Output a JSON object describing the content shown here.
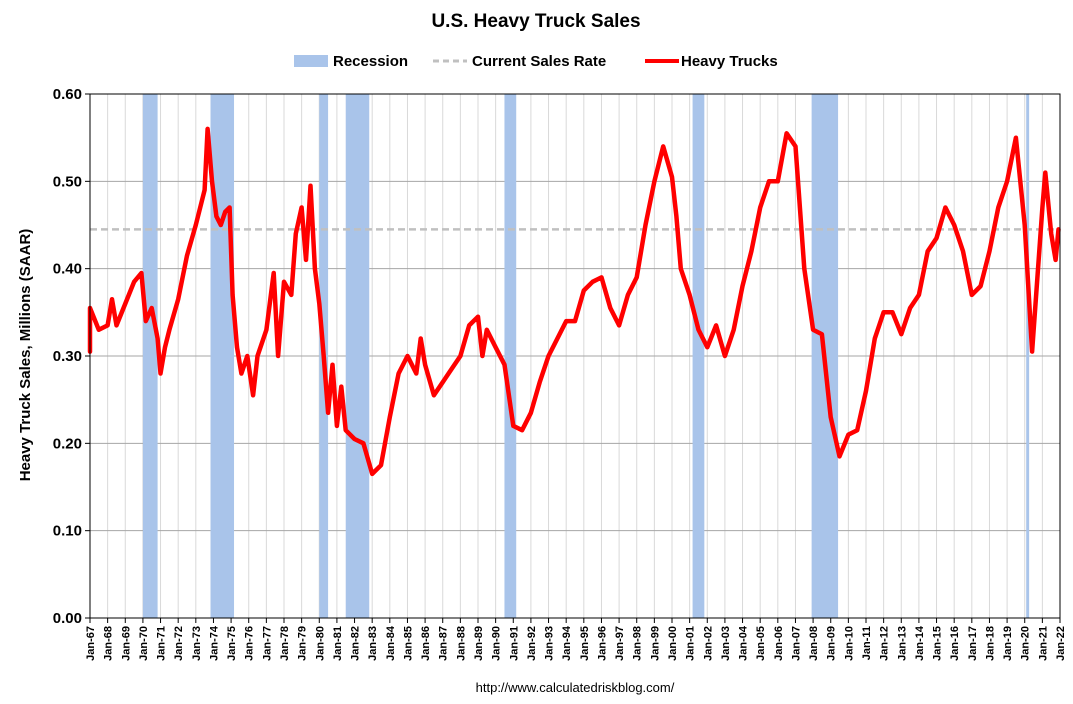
{
  "chart_data": {
    "type": "line",
    "title": "U.S. Heavy Truck Sales",
    "ylabel": "Heavy Truck Sales, Millions (SAAR)",
    "xlabel": "",
    "ylim": [
      0,
      0.6
    ],
    "yticks": [
      "0.00",
      "0.10",
      "0.20",
      "0.30",
      "0.40",
      "0.50",
      "0.60"
    ],
    "x_start": "Jan-67",
    "x_end": "Jan-22",
    "xtick_labels": [
      "Jan-67",
      "Jan-68",
      "Jan-69",
      "Jan-70",
      "Jan-71",
      "Jan-72",
      "Jan-73",
      "Jan-74",
      "Jan-75",
      "Jan-76",
      "Jan-77",
      "Jan-78",
      "Jan-79",
      "Jan-80",
      "Jan-81",
      "Jan-82",
      "Jan-83",
      "Jan-84",
      "Jan-85",
      "Jan-86",
      "Jan-87",
      "Jan-88",
      "Jan-89",
      "Jan-90",
      "Jan-91",
      "Jan-92",
      "Jan-93",
      "Jan-94",
      "Jan-95",
      "Jan-96",
      "Jan-97",
      "Jan-98",
      "Jan-99",
      "Jan-00",
      "Jan-01",
      "Jan-02",
      "Jan-03",
      "Jan-04",
      "Jan-05",
      "Jan-06",
      "Jan-07",
      "Jan-08",
      "Jan-09",
      "Jan-10",
      "Jan-11",
      "Jan-12",
      "Jan-13",
      "Jan-14",
      "Jan-15",
      "Jan-16",
      "Jan-17",
      "Jan-18",
      "Jan-19",
      "Jan-20",
      "Jan-21",
      "Jan-22"
    ],
    "grid": true,
    "legend_position": "top-center",
    "legend": [
      {
        "label": "Recession",
        "kind": "band",
        "color": "#a9c4ea"
      },
      {
        "label": "Current Sales Rate",
        "kind": "dashed",
        "color": "#c0c0c0"
      },
      {
        "label": "Heavy Trucks",
        "kind": "line",
        "color": "#ff0000"
      }
    ],
    "current_sales_rate": 0.445,
    "recessions": [
      [
        "Jan-70",
        "Nov-70"
      ],
      [
        "Nov-73",
        "Mar-75"
      ],
      [
        "Jan-80",
        "Jul-80"
      ],
      [
        "Jul-81",
        "Nov-82"
      ],
      [
        "Jul-90",
        "Mar-91"
      ],
      [
        "Mar-01",
        "Nov-01"
      ],
      [
        "Dec-07",
        "Jun-09"
      ],
      [
        "Feb-20",
        "Apr-20"
      ]
    ],
    "series": [
      {
        "name": "Heavy Trucks",
        "color": "#ff0000",
        "points": [
          [
            "Jan-67",
            0.305
          ],
          [
            "Jan-67",
            0.355
          ],
          [
            "Jul-67",
            0.33
          ],
          [
            "Jan-68",
            0.335
          ],
          [
            "Apr-68",
            0.365
          ],
          [
            "Jul-68",
            0.335
          ],
          [
            "Jan-69",
            0.36
          ],
          [
            "Jul-69",
            0.385
          ],
          [
            "Dec-69",
            0.395
          ],
          [
            "Mar-70",
            0.34
          ],
          [
            "Jul-70",
            0.355
          ],
          [
            "Nov-70",
            0.32
          ],
          [
            "Jan-71",
            0.28
          ],
          [
            "Apr-71",
            0.31
          ],
          [
            "Jul-71",
            0.33
          ],
          [
            "Jan-72",
            0.365
          ],
          [
            "Jul-72",
            0.415
          ],
          [
            "Jan-73",
            0.45
          ],
          [
            "Jul-73",
            0.49
          ],
          [
            "Sep-73",
            0.56
          ],
          [
            "Dec-73",
            0.5
          ],
          [
            "Mar-74",
            0.46
          ],
          [
            "Jun-74",
            0.45
          ],
          [
            "Sep-74",
            0.465
          ],
          [
            "Dec-74",
            0.47
          ],
          [
            "Feb-75",
            0.37
          ],
          [
            "May-75",
            0.31
          ],
          [
            "Aug-75",
            0.28
          ],
          [
            "Dec-75",
            0.3
          ],
          [
            "Apr-76",
            0.255
          ],
          [
            "Jul-76",
            0.3
          ],
          [
            "Jan-77",
            0.33
          ],
          [
            "Jun-77",
            0.395
          ],
          [
            "Sep-77",
            0.3
          ],
          [
            "Jan-78",
            0.385
          ],
          [
            "Jun-78",
            0.37
          ],
          [
            "Sep-78",
            0.44
          ],
          [
            "Jan-79",
            0.47
          ],
          [
            "Apr-79",
            0.41
          ],
          [
            "Jul-79",
            0.495
          ],
          [
            "Oct-79",
            0.4
          ],
          [
            "Jan-80",
            0.36
          ],
          [
            "Apr-80",
            0.3
          ],
          [
            "Jul-80",
            0.235
          ],
          [
            "Oct-80",
            0.29
          ],
          [
            "Jan-81",
            0.22
          ],
          [
            "Apr-81",
            0.265
          ],
          [
            "Jul-81",
            0.215
          ],
          [
            "Jan-82",
            0.205
          ],
          [
            "Jul-82",
            0.2
          ],
          [
            "Jan-83",
            0.165
          ],
          [
            "Jul-83",
            0.175
          ],
          [
            "Jan-84",
            0.23
          ],
          [
            "Jul-84",
            0.28
          ],
          [
            "Jan-85",
            0.3
          ],
          [
            "Jul-85",
            0.28
          ],
          [
            "Oct-85",
            0.32
          ],
          [
            "Jan-86",
            0.29
          ],
          [
            "Jul-86",
            0.255
          ],
          [
            "Jan-87",
            0.27
          ],
          [
            "Jul-87",
            0.285
          ],
          [
            "Jan-88",
            0.3
          ],
          [
            "Jul-88",
            0.335
          ],
          [
            "Jan-89",
            0.345
          ],
          [
            "Apr-89",
            0.3
          ],
          [
            "Jul-89",
            0.33
          ],
          [
            "Jan-90",
            0.31
          ],
          [
            "Jul-90",
            0.29
          ],
          [
            "Jan-91",
            0.22
          ],
          [
            "Jul-91",
            0.215
          ],
          [
            "Jan-92",
            0.235
          ],
          [
            "Jul-92",
            0.27
          ],
          [
            "Jan-93",
            0.3
          ],
          [
            "Jul-93",
            0.32
          ],
          [
            "Jan-94",
            0.34
          ],
          [
            "Jul-94",
            0.34
          ],
          [
            "Jan-95",
            0.375
          ],
          [
            "Jul-95",
            0.385
          ],
          [
            "Jan-96",
            0.39
          ],
          [
            "Jul-96",
            0.355
          ],
          [
            "Jan-97",
            0.335
          ],
          [
            "Jul-97",
            0.37
          ],
          [
            "Jan-98",
            0.39
          ],
          [
            "Jul-98",
            0.45
          ],
          [
            "Jan-99",
            0.5
          ],
          [
            "Jul-99",
            0.54
          ],
          [
            "Jan-00",
            0.505
          ],
          [
            "Apr-00",
            0.46
          ],
          [
            "Jul-00",
            0.4
          ],
          [
            "Jan-01",
            0.37
          ],
          [
            "Jul-01",
            0.33
          ],
          [
            "Jan-02",
            0.31
          ],
          [
            "Jul-02",
            0.335
          ],
          [
            "Jan-03",
            0.3
          ],
          [
            "Jul-03",
            0.33
          ],
          [
            "Jan-04",
            0.38
          ],
          [
            "Jul-04",
            0.42
          ],
          [
            "Jan-05",
            0.47
          ],
          [
            "Jul-05",
            0.5
          ],
          [
            "Jan-06",
            0.5
          ],
          [
            "Jul-06",
            0.555
          ],
          [
            "Jan-07",
            0.54
          ],
          [
            "Jul-07",
            0.4
          ],
          [
            "Jan-08",
            0.33
          ],
          [
            "Jul-08",
            0.325
          ],
          [
            "Jan-09",
            0.23
          ],
          [
            "Jul-09",
            0.185
          ],
          [
            "Jan-10",
            0.21
          ],
          [
            "Jul-10",
            0.215
          ],
          [
            "Jan-11",
            0.26
          ],
          [
            "Jul-11",
            0.32
          ],
          [
            "Jan-12",
            0.35
          ],
          [
            "Jul-12",
            0.35
          ],
          [
            "Jan-13",
            0.325
          ],
          [
            "Jul-13",
            0.355
          ],
          [
            "Jan-14",
            0.37
          ],
          [
            "Jul-14",
            0.42
          ],
          [
            "Jan-15",
            0.435
          ],
          [
            "Jul-15",
            0.47
          ],
          [
            "Jan-16",
            0.45
          ],
          [
            "Jul-16",
            0.42
          ],
          [
            "Jan-17",
            0.37
          ],
          [
            "Jul-17",
            0.38
          ],
          [
            "Jan-18",
            0.42
          ],
          [
            "Jul-18",
            0.47
          ],
          [
            "Jan-19",
            0.5
          ],
          [
            "Jul-19",
            0.55
          ],
          [
            "Jan-20",
            0.45
          ],
          [
            "Jun-20",
            0.305
          ],
          [
            "Jan-21",
            0.47
          ],
          [
            "Mar-21",
            0.51
          ],
          [
            "Jul-21",
            0.44
          ],
          [
            "Oct-21",
            0.41
          ],
          [
            "Dec-21",
            0.445
          ]
        ]
      }
    ],
    "source": "http://www.calculatedriskblog.com/"
  }
}
